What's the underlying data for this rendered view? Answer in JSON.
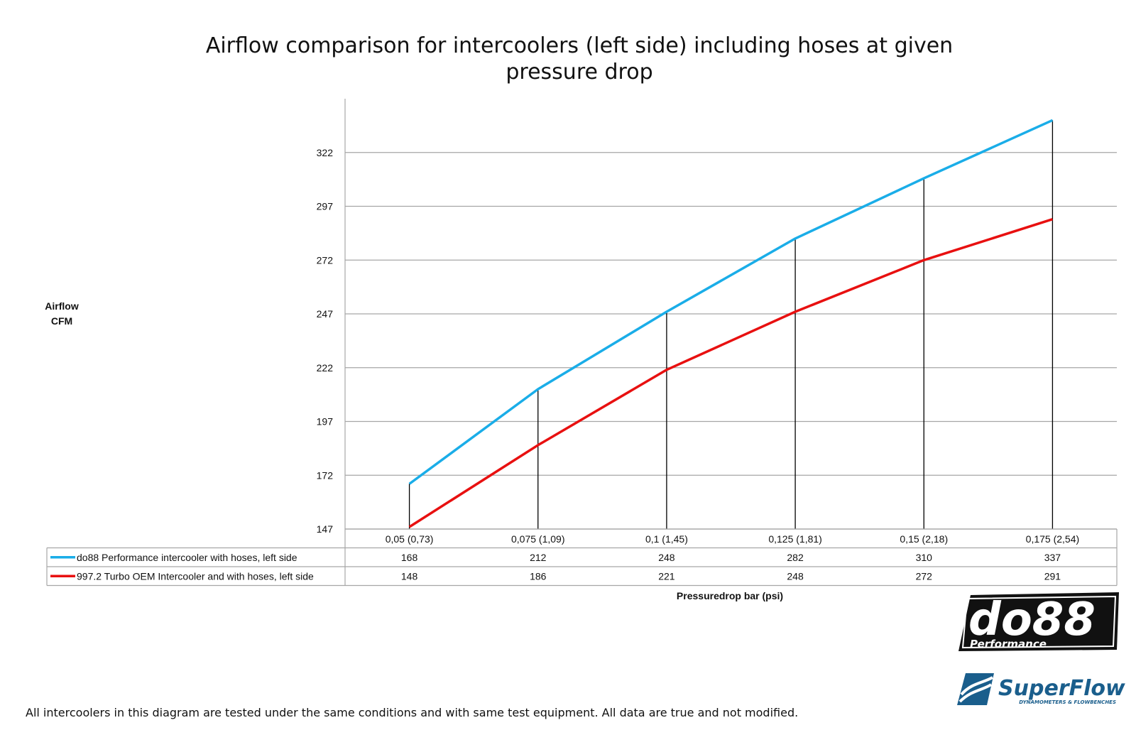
{
  "chart_data": {
    "type": "line",
    "title_lines": [
      "Airflow comparison for intercoolers (left side) including hoses at given",
      "pressure drop"
    ],
    "ylabel_lines": [
      "Airflow",
      "CFM"
    ],
    "xlabel": "Pressuredrop bar (psi)",
    "categories": [
      "0,05 (0,73)",
      "0,075 (1,09)",
      "0,1 (1,45)",
      "0,125 (1,81)",
      "0,15 (2,18)",
      "0,175 (2,54)"
    ],
    "ylim": [
      147,
      347
    ],
    "yticks": [
      147,
      172,
      197,
      222,
      247,
      272,
      297,
      322
    ],
    "grid": true,
    "drop_lines": true,
    "legend": "data-table-below",
    "series": [
      {
        "name": "do88 Performance intercooler with hoses, left side",
        "color": "#1AADE8",
        "values": [
          168,
          212,
          248,
          282,
          310,
          337
        ]
      },
      {
        "name": "997.2 Turbo OEM Intercooler and with hoses, left side",
        "color": "#E81010",
        "values": [
          148,
          186,
          221,
          248,
          272,
          291
        ]
      }
    ]
  },
  "footnote": "All intercoolers in this diagram are tested under the same conditions and with same test equipment. All data are true and not modified.",
  "logos": {
    "do88": {
      "main": "do88",
      "sub": "Performance"
    },
    "superflow": {
      "main": "SuperFlow",
      "sub": "DYNAMOMETERS & FLOWBENCHES"
    }
  }
}
